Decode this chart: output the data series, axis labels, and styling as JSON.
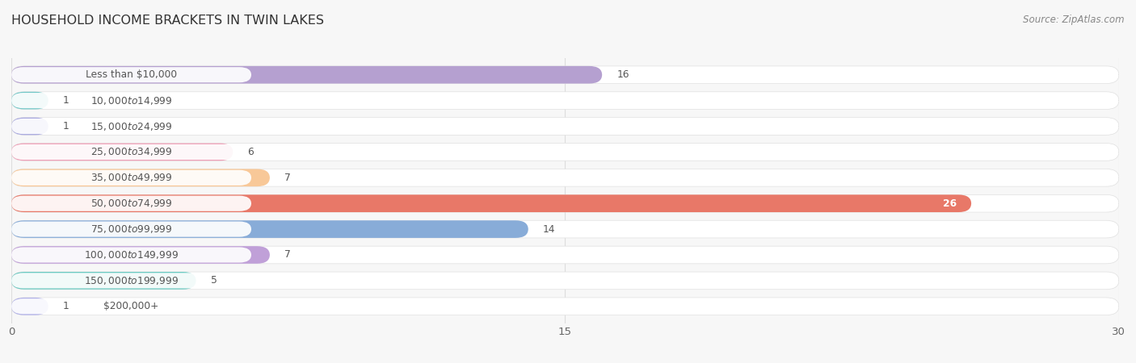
{
  "title": "HOUSEHOLD INCOME BRACKETS IN TWIN LAKES",
  "source": "Source: ZipAtlas.com",
  "categories": [
    "Less than $10,000",
    "$10,000 to $14,999",
    "$15,000 to $24,999",
    "$25,000 to $34,999",
    "$35,000 to $49,999",
    "$50,000 to $74,999",
    "$75,000 to $99,999",
    "$100,000 to $149,999",
    "$150,000 to $199,999",
    "$200,000+"
  ],
  "values": [
    16,
    1,
    1,
    6,
    7,
    26,
    14,
    7,
    5,
    1
  ],
  "bar_colors": [
    "#b5a0d0",
    "#72c8c8",
    "#a8a8e0",
    "#f0a0b8",
    "#f8c898",
    "#e87868",
    "#88acd8",
    "#c0a0d8",
    "#68c8c0",
    "#b0b0e8"
  ],
  "xlim": [
    0,
    30
  ],
  "xticks": [
    0,
    15,
    30
  ],
  "background_color": "#f7f7f7",
  "bar_background_color": "#ffffff",
  "label_pill_color": "#ffffff",
  "label_text_color": "#555555",
  "value_inside_color": "#ffffff",
  "value_outside_color": "#555555",
  "value_inside_threshold": 20,
  "title_color": "#333333",
  "source_color": "#888888",
  "grid_color": "#dddddd",
  "bar_height": 0.68,
  "bar_spacing": 1.0
}
